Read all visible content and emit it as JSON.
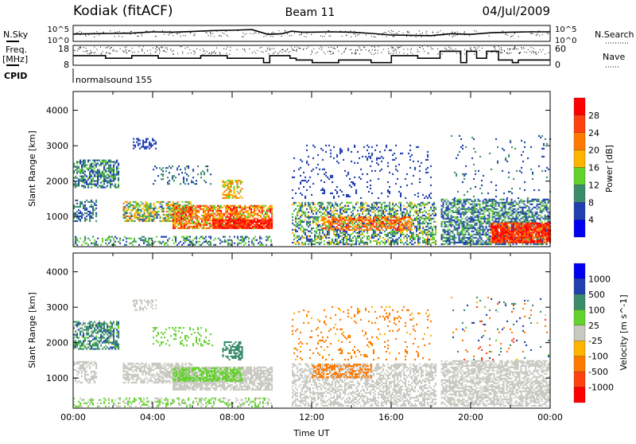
{
  "header": {
    "station": "Kodiak (fitACF)",
    "beam": "Beam 11",
    "date": "04/Jul/2009"
  },
  "status_panels": {
    "nsky_label": "N.Sky",
    "nsearch_label": "N.Search",
    "nsky_ticks": [
      "10^5",
      "10^0"
    ],
    "nsearch_ticks": [
      "10^5",
      "10^0"
    ],
    "freq_label_1": "Freq.",
    "freq_label_2": "[MHz]",
    "freq_ticks": [
      "18",
      "8"
    ],
    "nave_label": "Nave",
    "nave_ticks": [
      "60",
      "0"
    ],
    "cpid_label": "CPID",
    "cpid_value": "normalsound 155",
    "nsky_log10": [
      [
        0,
        2.3
      ],
      [
        2,
        2.5
      ],
      [
        3,
        2.6
      ],
      [
        4,
        3.0
      ],
      [
        5,
        2.9
      ],
      [
        6,
        3.1
      ],
      [
        7,
        3.4
      ],
      [
        8,
        3.5
      ],
      [
        9,
        3.7
      ],
      [
        9.8,
        2.2
      ],
      [
        10.5,
        2.4
      ],
      [
        11,
        3.2
      ],
      [
        11.5,
        2.9
      ],
      [
        12,
        2.9
      ],
      [
        13,
        3.0
      ],
      [
        14,
        2.9
      ],
      [
        15,
        2.5
      ],
      [
        16,
        2.0
      ],
      [
        17,
        1.9
      ],
      [
        18,
        1.8
      ],
      [
        19,
        2.4
      ],
      [
        20,
        2.2
      ],
      [
        21,
        2.7
      ],
      [
        22,
        2.9
      ],
      [
        23,
        3.0
      ],
      [
        24,
        3.0
      ]
    ],
    "freq_steps": [
      [
        0,
        13.5
      ],
      [
        1.63,
        12
      ],
      [
        2.95,
        13.5
      ],
      [
        4.28,
        12
      ],
      [
        6.42,
        13.5
      ],
      [
        7.75,
        12
      ],
      [
        9.58,
        9.5
      ],
      [
        9.89,
        13.5
      ],
      [
        10.91,
        12
      ],
      [
        11.22,
        11
      ],
      [
        12.03,
        9.5
      ],
      [
        13.36,
        11
      ],
      [
        14.99,
        9.5
      ],
      [
        16.01,
        13.5
      ],
      [
        17.34,
        12
      ],
      [
        18.46,
        16
      ],
      [
        19.5,
        9.5
      ],
      [
        19.8,
        16
      ],
      [
        20.3,
        12
      ],
      [
        20.8,
        16
      ],
      [
        21.4,
        11
      ],
      [
        22.1,
        9.5
      ],
      [
        22.4,
        11
      ],
      [
        24,
        11
      ]
    ]
  },
  "chart_data": [
    {
      "type": "heatmap",
      "name": "power",
      "xlabel": "",
      "ylabel": "Slant Range [km]",
      "ylim": [
        150,
        4530
      ],
      "xlim_hours": [
        0,
        24
      ],
      "yticks": [
        "1000",
        "2000",
        "3000",
        "4000"
      ],
      "colorbar": {
        "label": "Power [dB]",
        "ticks": [
          "28",
          "24",
          "20",
          "16",
          "12",
          "8",
          "4"
        ],
        "colors": [
          "#ff0000",
          "#ff4010",
          "#ff7800",
          "#ffb400",
          "#64d22d",
          "#3c8c6c",
          "#2040b0",
          "#0000f0"
        ]
      },
      "regions": [
        {
          "t": [
            0,
            2.3
          ],
          "r": [
            1800,
            2600
          ],
          "v": [
            4,
            14
          ],
          "d": 0.6
        },
        {
          "t": [
            0,
            1.2
          ],
          "r": [
            850,
            1450
          ],
          "v": [
            4,
            12
          ],
          "d": 0.5
        },
        {
          "t": [
            0,
            10
          ],
          "r": [
            180,
            420
          ],
          "v": [
            4,
            16
          ],
          "d": 0.35
        },
        {
          "t": [
            2.5,
            6
          ],
          "r": [
            850,
            1400
          ],
          "v": [
            6,
            22
          ],
          "d": 0.6
        },
        {
          "t": [
            5,
            10
          ],
          "r": [
            650,
            1300
          ],
          "v": [
            14,
            30
          ],
          "d": 0.75
        },
        {
          "t": [
            7,
            10
          ],
          "r": [
            650,
            900
          ],
          "v": [
            24,
            32
          ],
          "d": 0.8
        },
        {
          "t": [
            7.5,
            8.5
          ],
          "r": [
            1500,
            2000
          ],
          "v": [
            14,
            24
          ],
          "d": 0.5
        },
        {
          "t": [
            3,
            4.2
          ],
          "r": [
            2900,
            3200
          ],
          "v": [
            4,
            8
          ],
          "d": 0.4
        },
        {
          "t": [
            4,
            7
          ],
          "r": [
            1900,
            2400
          ],
          "v": [
            4,
            12
          ],
          "d": 0.2
        },
        {
          "t": [
            11,
            18.2
          ],
          "r": [
            200,
            1400
          ],
          "v": [
            4,
            18
          ],
          "d": 0.5
        },
        {
          "t": [
            12.5,
            17
          ],
          "r": [
            600,
            1000
          ],
          "v": [
            16,
            30
          ],
          "d": 0.55
        },
        {
          "t": [
            11,
            18
          ],
          "r": [
            1500,
            3000
          ],
          "v": [
            4,
            8
          ],
          "d": 0.08
        },
        {
          "t": [
            18.5,
            24
          ],
          "r": [
            200,
            1500
          ],
          "v": [
            4,
            14
          ],
          "d": 0.6
        },
        {
          "t": [
            21,
            24
          ],
          "r": [
            250,
            800
          ],
          "v": [
            22,
            32
          ],
          "d": 0.85
        },
        {
          "t": [
            19,
            24
          ],
          "r": [
            1500,
            3300
          ],
          "v": [
            4,
            10
          ],
          "d": 0.04
        }
      ]
    },
    {
      "type": "heatmap",
      "name": "velocity",
      "xlabel": "Time UT",
      "ylabel": "Slant Range [km]",
      "ylim": [
        150,
        4530
      ],
      "xlim_hours": [
        0,
        24
      ],
      "yticks": [
        "1000",
        "2000",
        "3000",
        "4000"
      ],
      "xticks": [
        "00:00",
        "04:00",
        "08:00",
        "12:00",
        "16:00",
        "20:00",
        "00:00"
      ],
      "colorbar": {
        "label": "Velocity [m s^-1]",
        "ticks": [
          "1000",
          "500",
          "100",
          "25",
          "-25",
          "-100",
          "-500",
          "-1000"
        ],
        "colors": [
          "#0000f0",
          "#2040b0",
          "#3c8c6c",
          "#64d22d",
          "#c8c8c0",
          "#ffb400",
          "#ff7800",
          "#ff4010",
          "#ff0000"
        ]
      },
      "regions": [
        {
          "t": [
            0,
            2.3
          ],
          "r": [
            1800,
            2600
          ],
          "v": [
            -20,
            600
          ],
          "d": 0.6
        },
        {
          "t": [
            0,
            1.2
          ],
          "r": [
            850,
            1450
          ],
          "v": [
            -20,
            20
          ],
          "d": 0.5
        },
        {
          "t": [
            0,
            10
          ],
          "r": [
            180,
            420
          ],
          "v": [
            -20,
            80
          ],
          "d": 0.35
        },
        {
          "t": [
            2.5,
            6
          ],
          "r": [
            850,
            1400
          ],
          "v": [
            -20,
            20
          ],
          "d": 0.6
        },
        {
          "t": [
            5,
            10
          ],
          "r": [
            650,
            1300
          ],
          "v": [
            -20,
            20
          ],
          "d": 0.75
        },
        {
          "t": [
            5,
            8.5
          ],
          "r": [
            900,
            1300
          ],
          "v": [
            30,
            90
          ],
          "d": 0.6
        },
        {
          "t": [
            7.5,
            8.5
          ],
          "r": [
            1500,
            2000
          ],
          "v": [
            150,
            400
          ],
          "d": 0.5
        },
        {
          "t": [
            3,
            4.2
          ],
          "r": [
            2900,
            3200
          ],
          "v": [
            -20,
            20
          ],
          "d": 0.4
        },
        {
          "t": [
            4,
            7
          ],
          "r": [
            1900,
            2400
          ],
          "v": [
            30,
            90
          ],
          "d": 0.2
        },
        {
          "t": [
            11,
            18.2
          ],
          "r": [
            200,
            1400
          ],
          "v": [
            -20,
            20
          ],
          "d": 0.5
        },
        {
          "t": [
            12,
            15
          ],
          "r": [
            1000,
            1400
          ],
          "v": [
            -400,
            -150
          ],
          "d": 0.45
        },
        {
          "t": [
            11,
            18
          ],
          "r": [
            1500,
            3000
          ],
          "v": [
            -400,
            -50
          ],
          "d": 0.08
        },
        {
          "t": [
            18.5,
            24
          ],
          "r": [
            200,
            1500
          ],
          "v": [
            -20,
            20
          ],
          "d": 0.6
        },
        {
          "t": [
            19,
            24
          ],
          "r": [
            1500,
            3300
          ],
          "v": [
            -800,
            800
          ],
          "d": 0.04
        }
      ]
    }
  ]
}
